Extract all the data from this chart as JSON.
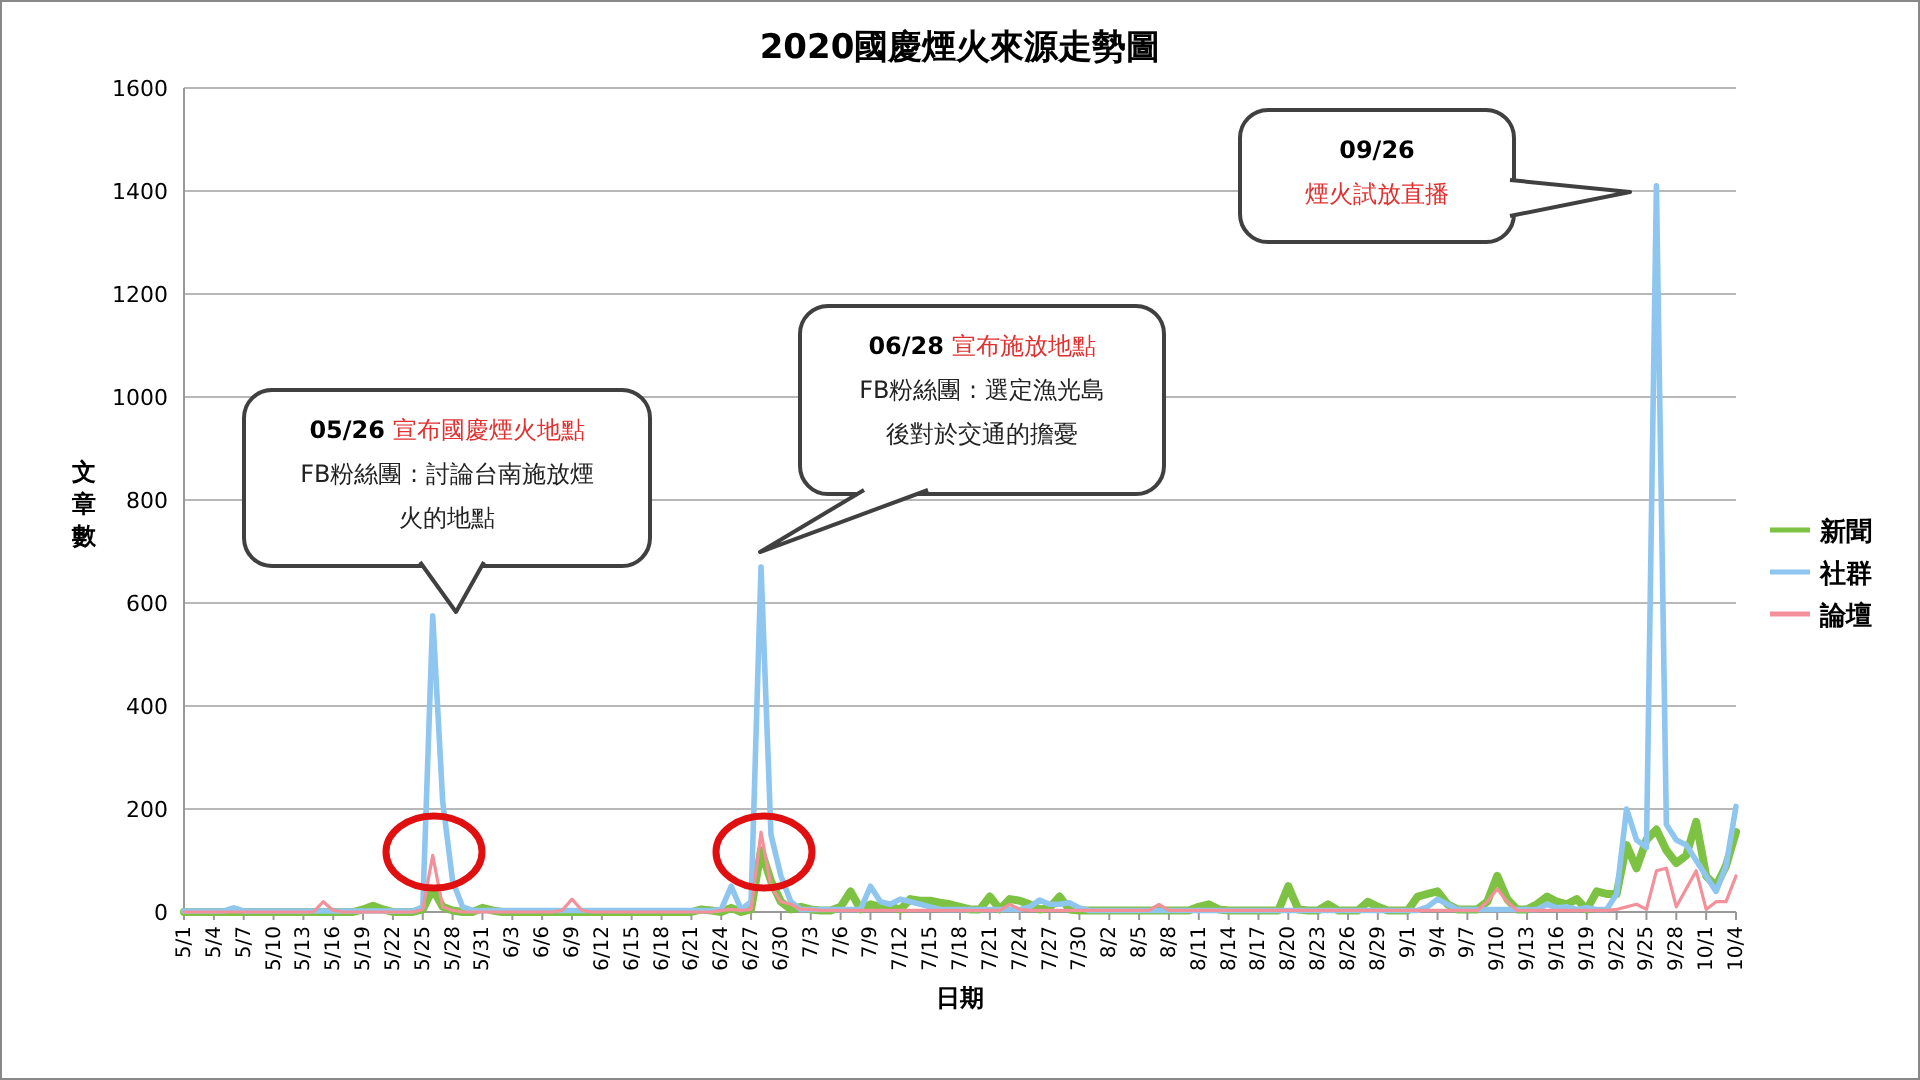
{
  "chart_data": {
    "type": "line",
    "title": "2020國慶煙火來源走勢圖",
    "xlabel": "日期",
    "ylabel": "文章數",
    "x": [
      "--05-01",
      "--05-02",
      "--05-03",
      "--05-04",
      "--05-05",
      "--05-06",
      "--05-07",
      "--05-08",
      "--05-09",
      "--05-10",
      "--05-11",
      "--05-12",
      "--05-13",
      "--05-14",
      "--05-15",
      "--05-16",
      "--05-17",
      "--05-18",
      "--05-19",
      "--05-20",
      "--05-21",
      "--05-22",
      "--05-23",
      "--05-24",
      "--05-25",
      "--05-26",
      "--05-27",
      "--05-28",
      "--05-29",
      "--05-30",
      "--05-31",
      "--06-01",
      "--06-02",
      "--06-03",
      "--06-04",
      "--06-05",
      "--06-06",
      "--06-07",
      "--06-08",
      "--06-09",
      "--06-10",
      "--06-11",
      "--06-12",
      "--06-13",
      "--06-14",
      "--06-15",
      "--06-16",
      "--06-17",
      "--06-18",
      "--06-19",
      "--06-20",
      "--06-21",
      "--06-22",
      "--06-23",
      "--06-24",
      "--06-25",
      "--06-26",
      "--06-27",
      "--06-28",
      "--06-29",
      "--06-30",
      "--07-01",
      "--07-02",
      "--07-03",
      "--07-04",
      "--07-05",
      "--07-06",
      "--07-07",
      "--07-08",
      "--07-09",
      "--07-10",
      "--07-11",
      "--07-12",
      "--07-13",
      "--07-14",
      "--07-15",
      "--07-16",
      "--07-17",
      "--07-18",
      "--07-19",
      "--07-20",
      "--07-21",
      "--07-22",
      "--07-23",
      "--07-24",
      "--07-25",
      "--07-26",
      "--07-27",
      "--07-28",
      "--07-29",
      "--07-30",
      "--07-31",
      "--08-01",
      "--08-02",
      "--08-03",
      "--08-04",
      "--08-05",
      "--08-06",
      "--08-07",
      "--08-08",
      "--08-09",
      "--08-10",
      "--08-11",
      "--08-12",
      "--08-13",
      "--08-14",
      "--08-15",
      "--08-16",
      "--08-17",
      "--08-18",
      "--08-19",
      "--08-20",
      "--08-21",
      "--08-22",
      "--08-23",
      "--08-24",
      "--08-25",
      "--08-26",
      "--08-27",
      "--08-28",
      "--08-29",
      "--08-30",
      "--08-31",
      "--09-01",
      "--09-02",
      "--09-03",
      "--09-04",
      "--09-05",
      "--09-06",
      "--09-07",
      "--09-08",
      "--09-09",
      "--09-10",
      "--09-11",
      "--09-12",
      "--09-13",
      "--09-14",
      "--09-15",
      "--09-16",
      "--09-17",
      "--09-18",
      "--09-19",
      "--09-20",
      "--09-21",
      "--09-22",
      "--09-23",
      "--09-24",
      "--09-25",
      "--09-26",
      "--09-27",
      "--09-28",
      "--09-29",
      "--09-30",
      "--10-01",
      "--10-02",
      "--10-03",
      "--10-04"
    ],
    "series": [
      {
        "name": "新聞",
        "color": "#7dc242",
        "values": [
          0,
          0,
          0,
          0,
          0,
          0,
          0,
          0,
          0,
          0,
          0,
          0,
          0,
          0,
          0,
          0,
          0,
          0,
          5,
          12,
          5,
          0,
          0,
          0,
          5,
          45,
          10,
          3,
          0,
          0,
          8,
          3,
          0,
          0,
          0,
          0,
          0,
          0,
          0,
          0,
          0,
          0,
          0,
          0,
          0,
          0,
          0,
          0,
          0,
          0,
          0,
          0,
          5,
          3,
          0,
          8,
          0,
          5,
          120,
          60,
          20,
          5,
          10,
          5,
          3,
          3,
          10,
          40,
          5,
          15,
          10,
          10,
          5,
          25,
          22,
          22,
          18,
          15,
          10,
          5,
          5,
          30,
          5,
          25,
          22,
          15,
          5,
          8,
          30,
          5,
          3,
          3,
          3,
          3,
          3,
          3,
          3,
          3,
          3,
          3,
          3,
          3,
          10,
          15,
          5,
          3,
          3,
          3,
          3,
          3,
          3,
          50,
          5,
          3,
          3,
          15,
          3,
          3,
          3,
          20,
          10,
          3,
          3,
          3,
          30,
          35,
          40,
          15,
          5,
          5,
          5,
          20,
          70,
          25,
          5,
          5,
          15,
          30,
          20,
          15,
          25,
          5,
          40,
          35,
          35,
          130,
          85,
          140,
          160,
          120,
          95,
          110,
          175,
          70,
          50,
          90,
          155
        ]
      },
      {
        "name": "社群",
        "color": "#8ec6f0",
        "values": [
          2,
          2,
          2,
          2,
          2,
          8,
          2,
          2,
          2,
          2,
          2,
          2,
          2,
          2,
          2,
          2,
          2,
          2,
          2,
          2,
          2,
          2,
          2,
          2,
          10,
          575,
          215,
          60,
          10,
          3,
          3,
          3,
          3,
          3,
          3,
          3,
          3,
          3,
          3,
          3,
          3,
          3,
          3,
          3,
          3,
          3,
          3,
          3,
          3,
          3,
          3,
          3,
          3,
          3,
          5,
          50,
          5,
          20,
          670,
          150,
          70,
          20,
          5,
          5,
          5,
          5,
          5,
          5,
          5,
          50,
          20,
          15,
          25,
          20,
          15,
          10,
          5,
          5,
          5,
          5,
          5,
          5,
          5,
          5,
          5,
          10,
          23,
          15,
          15,
          18,
          8,
          3,
          3,
          3,
          3,
          3,
          3,
          3,
          3,
          3,
          3,
          3,
          3,
          3,
          3,
          3,
          3,
          3,
          3,
          3,
          3,
          3,
          3,
          3,
          3,
          3,
          3,
          3,
          3,
          3,
          3,
          3,
          3,
          3,
          3,
          10,
          25,
          15,
          5,
          5,
          5,
          5,
          5,
          5,
          5,
          5,
          5,
          15,
          8,
          10,
          5,
          8,
          5,
          5,
          35,
          200,
          140,
          125,
          1410,
          170,
          140,
          130,
          100,
          70,
          40,
          90,
          205
        ]
      },
      {
        "name": "論壇",
        "color": "#f4909a",
        "values": [
          0,
          0,
          0,
          0,
          0,
          0,
          0,
          0,
          0,
          0,
          0,
          0,
          0,
          0,
          20,
          3,
          0,
          0,
          0,
          0,
          0,
          0,
          0,
          0,
          5,
          110,
          10,
          3,
          0,
          0,
          0,
          0,
          0,
          0,
          0,
          0,
          0,
          0,
          3,
          25,
          3,
          0,
          0,
          0,
          0,
          0,
          0,
          0,
          0,
          0,
          0,
          0,
          0,
          0,
          3,
          5,
          3,
          5,
          155,
          50,
          20,
          15,
          5,
          5,
          3,
          3,
          3,
          3,
          3,
          3,
          3,
          3,
          3,
          3,
          3,
          3,
          3,
          3,
          3,
          3,
          3,
          3,
          3,
          15,
          5,
          3,
          3,
          3,
          3,
          3,
          3,
          3,
          3,
          3,
          3,
          3,
          3,
          3,
          15,
          3,
          3,
          3,
          3,
          3,
          3,
          3,
          3,
          3,
          3,
          3,
          3,
          3,
          3,
          3,
          3,
          3,
          3,
          3,
          3,
          3,
          3,
          3,
          3,
          3,
          3,
          3,
          3,
          3,
          3,
          3,
          3,
          20,
          45,
          20,
          3,
          3,
          3,
          3,
          3,
          3,
          3,
          3,
          3,
          3,
          5,
          10,
          15,
          5,
          80,
          85,
          10,
          45,
          80,
          5,
          20,
          20,
          70
        ]
      }
    ],
    "xlim": [
      "--05-01",
      "--10-04"
    ],
    "xticks": [
      {
        "value": "--05-01",
        "label": "5/1"
      },
      {
        "value": "--05-04",
        "label": "5/4"
      },
      {
        "value": "--05-07",
        "label": "5/7"
      },
      {
        "value": "--05-10",
        "label": "5/10"
      },
      {
        "value": "--05-13",
        "label": "5/13"
      },
      {
        "value": "--05-16",
        "label": "5/16"
      },
      {
        "value": "--05-19",
        "label": "5/19"
      },
      {
        "value": "--05-22",
        "label": "5/22"
      },
      {
        "value": "--05-25",
        "label": "5/25"
      },
      {
        "value": "--05-28",
        "label": "5/28"
      },
      {
        "value": "--05-31",
        "label": "5/31"
      },
      {
        "value": "--06-03",
        "label": "6/3"
      },
      {
        "value": "--06-06",
        "label": "6/6"
      },
      {
        "value": "--06-09",
        "label": "6/9"
      },
      {
        "value": "--06-12",
        "label": "6/12"
      },
      {
        "value": "--06-15",
        "label": "6/15"
      },
      {
        "value": "--06-18",
        "label": "6/18"
      },
      {
        "value": "--06-21",
        "label": "6/21"
      },
      {
        "value": "--06-24",
        "label": "6/24"
      },
      {
        "value": "--06-27",
        "label": "6/27"
      },
      {
        "value": "--06-30",
        "label": "6/30"
      },
      {
        "value": "--07-03",
        "label": "7/3"
      },
      {
        "value": "--07-06",
        "label": "7/6"
      },
      {
        "value": "--07-09",
        "label": "7/9"
      },
      {
        "value": "--07-12",
        "label": "7/12"
      },
      {
        "value": "--07-15",
        "label": "7/15"
      },
      {
        "value": "--07-18",
        "label": "7/18"
      },
      {
        "value": "--07-21",
        "label": "7/21"
      },
      {
        "value": "--07-24",
        "label": "7/24"
      },
      {
        "value": "--07-27",
        "label": "7/27"
      },
      {
        "value": "--07-30",
        "label": "7/30"
      },
      {
        "value": "--08-02",
        "label": "8/2"
      },
      {
        "value": "--08-05",
        "label": "8/5"
      },
      {
        "value": "--08-08",
        "label": "8/8"
      },
      {
        "value": "--08-11",
        "label": "8/11"
      },
      {
        "value": "--08-14",
        "label": "8/14"
      },
      {
        "value": "--08-17",
        "label": "8/17"
      },
      {
        "value": "--08-20",
        "label": "8/20"
      },
      {
        "value": "--08-23",
        "label": "8/23"
      },
      {
        "value": "--08-26",
        "label": "8/26"
      },
      {
        "value": "--08-29",
        "label": "8/29"
      },
      {
        "value": "--09-01",
        "label": "9/1"
      },
      {
        "value": "--09-04",
        "label": "9/4"
      },
      {
        "value": "--09-07",
        "label": "9/7"
      },
      {
        "value": "--09-10",
        "label": "9/10"
      },
      {
        "value": "--09-13",
        "label": "9/13"
      },
      {
        "value": "--09-16",
        "label": "9/16"
      },
      {
        "value": "--09-19",
        "label": "9/19"
      },
      {
        "value": "--09-22",
        "label": "9/22"
      },
      {
        "value": "--09-25",
        "label": "9/25"
      },
      {
        "value": "--09-28",
        "label": "9/28"
      },
      {
        "value": "--10-01",
        "label": "10/1"
      },
      {
        "value": "--10-04",
        "label": "10/4"
      }
    ],
    "ylim": [
      0,
      1600
    ],
    "yticks": [
      0,
      200,
      400,
      600,
      800,
      1000,
      1200,
      1400,
      1600
    ],
    "grid": "y",
    "legend": "right",
    "marker": "none",
    "line_style": "solid",
    "annotations": [
      "05/26 宣布國慶煙火地點\nFB粉絲團 : 討論台南施放煙火的地點",
      "06/28 宣布施放地點\nFB粉絲團 : 選定漁光島後對於交通的擔憂",
      "09/26\n煙火試放直播"
    ]
  }
}
